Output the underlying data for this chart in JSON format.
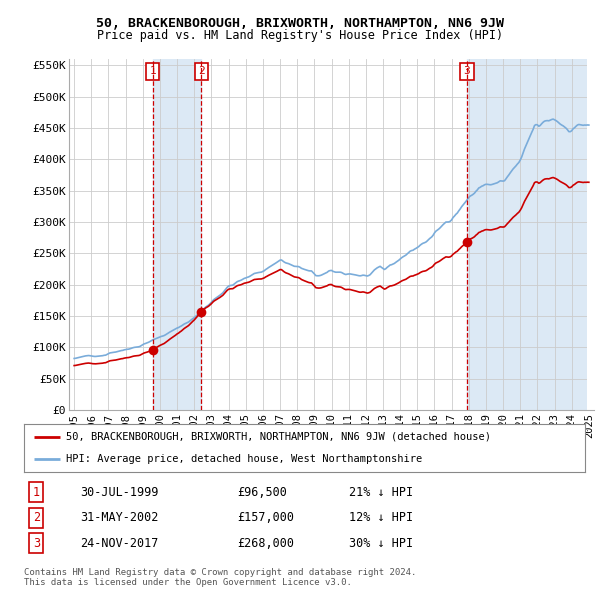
{
  "title": "50, BRACKENBOROUGH, BRIXWORTH, NORTHAMPTON, NN6 9JW",
  "subtitle": "Price paid vs. HM Land Registry's House Price Index (HPI)",
  "legend_label_red": "50, BRACKENBOROUGH, BRIXWORTH, NORTHAMPTON, NN6 9JW (detached house)",
  "legend_label_blue": "HPI: Average price, detached house, West Northamptonshire",
  "footnote1": "Contains HM Land Registry data © Crown copyright and database right 2024.",
  "footnote2": "This data is licensed under the Open Government Licence v3.0.",
  "transactions": [
    {
      "num": 1,
      "date": "30-JUL-1999",
      "price": "£96,500",
      "pct": "21% ↓ HPI",
      "year": 1999.583,
      "value": 96500
    },
    {
      "num": 2,
      "date": "31-MAY-2002",
      "price": "£157,000",
      "pct": "12% ↓ HPI",
      "year": 2002.417,
      "value": 157000
    },
    {
      "num": 3,
      "date": "24-NOV-2017",
      "price": "£268,000",
      "pct": "30% ↓ HPI",
      "year": 2017.9,
      "value": 268000
    }
  ],
  "ylim": [
    0,
    560000
  ],
  "xlim": [
    1994.7,
    2025.3
  ],
  "yticks": [
    0,
    50000,
    100000,
    150000,
    200000,
    250000,
    300000,
    350000,
    400000,
    450000,
    500000,
    550000
  ],
  "ytick_labels": [
    "£0",
    "£50K",
    "£100K",
    "£150K",
    "£200K",
    "£250K",
    "£300K",
    "£350K",
    "£400K",
    "£450K",
    "£500K",
    "£550K"
  ],
  "xticks": [
    1995,
    1996,
    1997,
    1998,
    1999,
    2000,
    2001,
    2002,
    2003,
    2004,
    2005,
    2006,
    2007,
    2008,
    2009,
    2010,
    2011,
    2012,
    2013,
    2014,
    2015,
    2016,
    2017,
    2018,
    2019,
    2020,
    2021,
    2022,
    2023,
    2024,
    2025
  ],
  "red_color": "#cc0000",
  "blue_color": "#7aacda",
  "shade_color": "#dce9f5",
  "hatch_color": "#cccccc",
  "grid_color": "#cccccc",
  "bg_color": "#ffffff"
}
